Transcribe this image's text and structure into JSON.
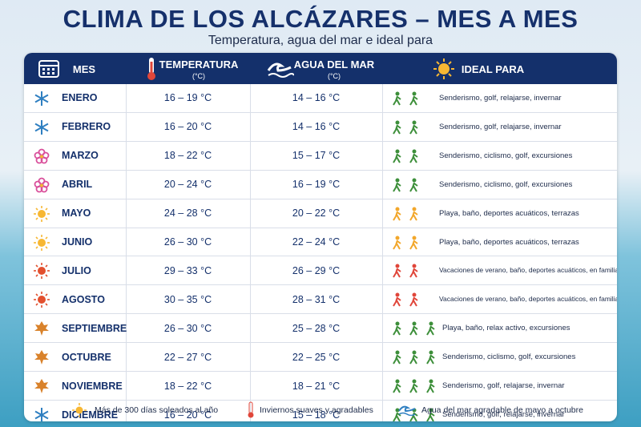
{
  "header": {
    "title": "CLIMA DE LOS ALCÁZARES – MES A MES",
    "subtitle": "Temperatura, agua del mar e ideal para"
  },
  "table": {
    "columns": [
      {
        "label": "MES"
      },
      {
        "label": "TEMPERATURA",
        "unit": "(°C)"
      },
      {
        "label": "AGUA DEL MAR",
        "unit": "(°C)"
      },
      {
        "label": "IDEAL PARA"
      }
    ],
    "rows": [
      [
        "ENERO",
        "16 – 19 °C",
        "14 – 16 °C",
        "Senderismo, golf, relajarse, invernar"
      ],
      [
        "FEBRERO",
        "16 – 20 °C",
        "14 – 16 °C",
        "Senderismo, golf, relajarse, invernar"
      ],
      [
        "MARZO",
        "18 – 22 °C",
        "15 – 17 °C",
        "Senderismo, ciclismo, golf, excursiones"
      ],
      [
        "ABRIL",
        "20 – 24 °C",
        "16 – 19 °C",
        "Senderismo, ciclismo, golf, excursiones"
      ],
      [
        "MAYO",
        "24 – 28 °C",
        "20 – 22 °C",
        "Playa, baño, deportes acuáticos, terrazas"
      ],
      [
        "JUNIO",
        "26 – 30 °C",
        "22 – 24 °C",
        "Playa, baño, deportes acuáticos, terrazas"
      ],
      [
        "JULIO",
        "29 – 33 °C",
        "26 – 29 °C",
        "Vacaciones de verano, baño, deportes acuáticos, en familia"
      ],
      [
        "AGOSTO",
        "30 – 35 °C",
        "28 – 31 °C",
        "Vacaciones de verano, baño, deportes acuáticos, en familia"
      ],
      [
        "SEPTIEMBRE",
        "26 – 30 °C",
        "25 – 28 °C",
        "Playa, baño, relax activo, excursiones"
      ],
      [
        "OCTUBRE",
        "22 – 27 °C",
        "22 – 25 °C",
        "Senderismo, ciclismo, golf, excursiones"
      ],
      [
        "NOVIEMBRE",
        "18 – 22 °C",
        "18 – 21 °C",
        "Senderismo, golf, relajarse, invernar"
      ],
      [
        "DICIEMBRE",
        "16 – 20 °C",
        "15 – 18 °C",
        "Senderismo, golf, relajarse, invernar"
      ]
    ]
  },
  "footer": [
    "Más de 300 días soleados al año",
    "Inviernos suaves y agradables",
    "Agua del mar agradable de mayo a octubre"
  ]
}
